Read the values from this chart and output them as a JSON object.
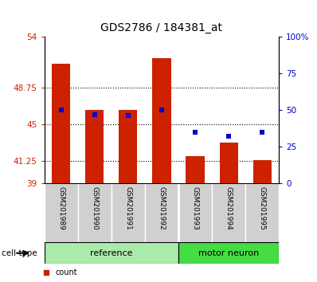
{
  "title": "GDS2786 / 184381_at",
  "samples": [
    "GSM201989",
    "GSM201990",
    "GSM201991",
    "GSM201992",
    "GSM201993",
    "GSM201994",
    "GSM201995"
  ],
  "counts": [
    51.2,
    46.5,
    46.5,
    51.8,
    41.8,
    43.2,
    41.4
  ],
  "percentiles": [
    50,
    47,
    46,
    50,
    35,
    32,
    35
  ],
  "y_min": 39,
  "y_max": 54,
  "y_ticks": [
    39,
    41.25,
    45,
    48.75,
    54
  ],
  "y_ticks_labels": [
    "39",
    "41.25",
    "45",
    "48.75",
    "54"
  ],
  "y_ticks_right": [
    0,
    25,
    50,
    75,
    100
  ],
  "y_ticks_right_labels": [
    "0",
    "25",
    "50",
    "75",
    "100%"
  ],
  "groups": [
    {
      "label": "reference",
      "start": 0,
      "end": 4,
      "color": "#aaeaaa"
    },
    {
      "label": "motor neuron",
      "start": 4,
      "end": 7,
      "color": "#44dd44"
    }
  ],
  "bar_color": "#cc2200",
  "marker_color": "#0000cc",
  "bar_width": 0.55,
  "background_plot": "#ffffff",
  "title_fontsize": 10,
  "tick_label_fontsize": 7.5,
  "left_tick_color": "#cc2200",
  "right_tick_color": "#0000cc",
  "grid_color": "black",
  "grid_linestyle": "dotted",
  "grid_linewidth": 0.8,
  "legend_fontsize": 7,
  "sample_label_fontsize": 6.5,
  "group_label_fontsize": 8
}
